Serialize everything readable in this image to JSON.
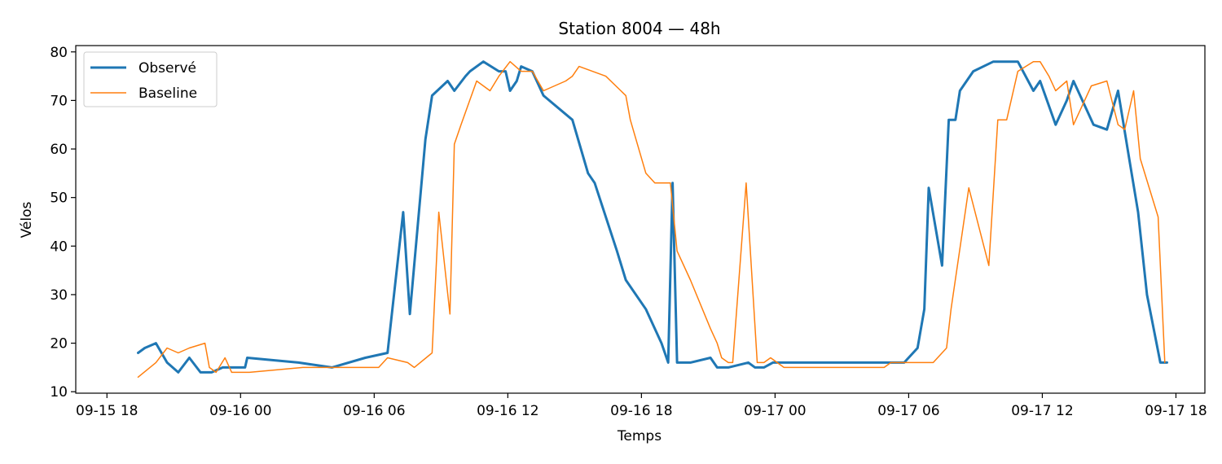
{
  "chart_data": {
    "type": "line",
    "title": "Station 8004 — 48h",
    "xlabel": "Temps",
    "ylabel": "Vélos",
    "x_unit": "hours since 09-15 18:00",
    "xlim": [
      16.6,
      67.3
    ],
    "ylim": [
      9.7,
      81.3
    ],
    "xticks": [
      {
        "value": 18,
        "label": "09-15 18"
      },
      {
        "value": 24,
        "label": "09-16 00"
      },
      {
        "value": 30,
        "label": "09-16 06"
      },
      {
        "value": 36,
        "label": "09-16 12"
      },
      {
        "value": 42,
        "label": "09-16 18"
      },
      {
        "value": 48,
        "label": "09-17 00"
      },
      {
        "value": 54,
        "label": "09-17 06"
      },
      {
        "value": 60,
        "label": "09-17 12"
      },
      {
        "value": 66,
        "label": "09-17 18"
      }
    ],
    "yticks": [
      10,
      20,
      30,
      40,
      50,
      60,
      70,
      80
    ],
    "grid": false,
    "legend": "top-left",
    "series": [
      {
        "name": "Observé",
        "color": "#1f77b4",
        "x": [
          19.4,
          19.7,
          20.2,
          20.7,
          21.2,
          21.7,
          22.2,
          22.7,
          23.2,
          24.2,
          24.3,
          26.6,
          28.1,
          29.6,
          30.6,
          31.3,
          31.6,
          32.3,
          32.6,
          33.3,
          33.6,
          34.1,
          34.3,
          34.9,
          35.6,
          35.9,
          36.1,
          36.4,
          36.6,
          37.1,
          37.6,
          38.9,
          39.6,
          39.9,
          40.9,
          41.3,
          42.2,
          42.6,
          42.9,
          43.2,
          43.4,
          43.6,
          44.2,
          45.1,
          45.4,
          45.9,
          46.8,
          47.1,
          47.5,
          47.9,
          48.4,
          49.3,
          53.3,
          53.8,
          54.4,
          54.7,
          54.9,
          55.5,
          55.8,
          56.1,
          56.3,
          56.9,
          57.8,
          58.9,
          59.6,
          59.9,
          60.6,
          61.1,
          61.4,
          62.3,
          62.9,
          63.4,
          63.9,
          64.3,
          64.7,
          65.3,
          65.6
        ],
        "values": [
          18,
          19,
          20,
          16,
          14,
          17,
          14,
          14,
          15,
          15,
          17,
          16,
          15,
          17,
          18,
          47,
          26,
          62,
          71,
          74,
          72,
          75,
          76,
          78,
          76,
          76,
          72,
          74,
          77,
          76,
          71,
          66,
          55,
          53,
          39,
          33,
          27,
          23,
          20,
          16,
          53,
          16,
          16,
          17,
          15,
          15,
          16,
          15,
          15,
          16,
          16,
          16,
          16,
          16,
          19,
          27,
          52,
          36,
          66,
          66,
          72,
          76,
          78,
          78,
          72,
          74,
          65,
          70,
          74,
          65,
          64,
          72,
          58,
          47,
          30,
          16,
          16
        ]
      },
      {
        "name": "Baseline",
        "color": "#ff7f0e",
        "x": [
          19.4,
          20.2,
          20.7,
          21.2,
          21.7,
          22.4,
          22.6,
          22.9,
          23.3,
          23.6,
          24.2,
          24.4,
          26.8,
          28.4,
          29.3,
          29.6,
          30.2,
          30.6,
          31.5,
          31.8,
          32.6,
          32.9,
          33.4,
          33.6,
          33.9,
          34.6,
          35.2,
          35.6,
          36.1,
          36.6,
          37.1,
          37.6,
          38.6,
          38.9,
          39.2,
          40.4,
          41.3,
          41.5,
          42.2,
          42.6,
          43.3,
          43.6,
          44.2,
          45.1,
          45.4,
          45.6,
          45.9,
          46.1,
          46.7,
          47.2,
          47.5,
          47.8,
          48.4,
          52.2,
          52.9,
          53.2,
          53.6,
          54.4,
          54.7,
          55.1,
          55.7,
          55.9,
          56.7,
          57.6,
          58.0,
          58.4,
          58.9,
          59.6,
          59.9,
          60.3,
          60.6,
          61.1,
          61.4,
          62.2,
          62.9,
          63.4,
          63.7,
          64.1,
          64.4,
          65.2,
          65.5
        ],
        "values": [
          13,
          16,
          19,
          18,
          19,
          20,
          15,
          14,
          17,
          14,
          14,
          14,
          15,
          15,
          15,
          15,
          15,
          17,
          16,
          15,
          18,
          47,
          26,
          61,
          65,
          74,
          72,
          75,
          78,
          76,
          76,
          72,
          74,
          75,
          77,
          75,
          71,
          66,
          55,
          53,
          53,
          39,
          33,
          23,
          20,
          17,
          16,
          16,
          53,
          16,
          16,
          17,
          15,
          15,
          15,
          16,
          16,
          16,
          16,
          16,
          19,
          27,
          52,
          36,
          66,
          66,
          76,
          78,
          78,
          75,
          72,
          74,
          65,
          73,
          74,
          65,
          64,
          72,
          58,
          46,
          16
        ]
      }
    ]
  }
}
